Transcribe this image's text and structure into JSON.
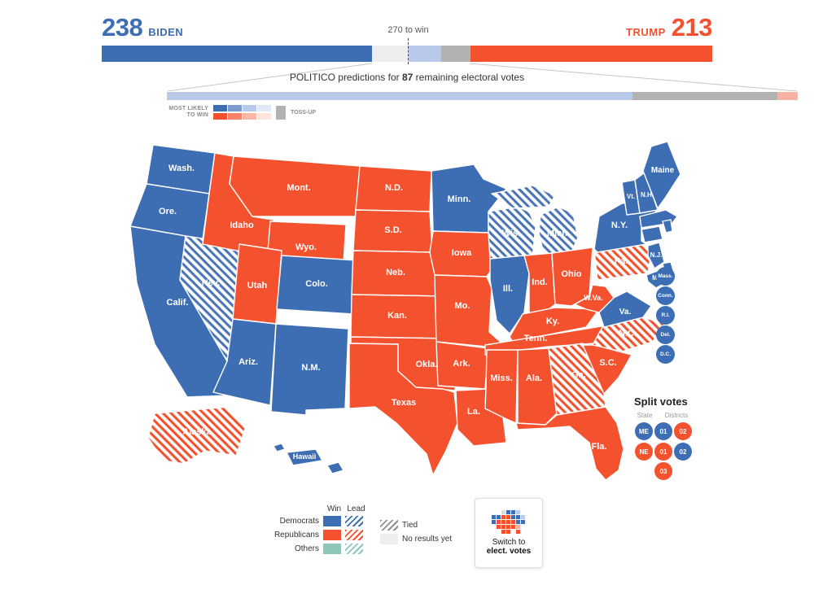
{
  "colors": {
    "democrat": "#3d6eb4",
    "republican": "#f4512e",
    "predicted_democrat": "#b9c9ea",
    "predicted_republican": "#f9b2a1",
    "tossup": "#b2b2b2",
    "no_results": "#eeeeee",
    "others": "#8ec6ba",
    "scale_dem": [
      "#3d6eb4",
      "#7e9bd0",
      "#b9c9ea",
      "#e2e9f6"
    ],
    "scale_rep": [
      "#f4512e",
      "#f8836a",
      "#fbb7a6",
      "#fde4dc"
    ]
  },
  "header": {
    "dem_votes": "238",
    "dem_name": "BIDEN",
    "rep_name": "TRUMP",
    "rep_votes": "213",
    "to_win": "270 to win"
  },
  "prediction": {
    "prefix": "POLITICO predictions for ",
    "count": "87",
    "suffix": " remaining electoral votes",
    "most_likely_line1": "MOST LIKELY",
    "most_likely_line2": "TO WIN",
    "tossup": "TOSS-UP"
  },
  "map": {
    "states": [
      {
        "id": "WA",
        "label": "Wash.",
        "party": "dem",
        "status": "win"
      },
      {
        "id": "OR",
        "label": "Ore.",
        "party": "dem",
        "status": "win"
      },
      {
        "id": "CA",
        "label": "Calif.",
        "party": "dem",
        "status": "win"
      },
      {
        "id": "NV",
        "label": "Nev.",
        "party": "dem",
        "status": "lead"
      },
      {
        "id": "ID",
        "label": "Idaho",
        "party": "rep",
        "status": "win"
      },
      {
        "id": "MT",
        "label": "Mont.",
        "party": "rep",
        "status": "win"
      },
      {
        "id": "WY",
        "label": "Wyo.",
        "party": "rep",
        "status": "win"
      },
      {
        "id": "UT",
        "label": "Utah",
        "party": "rep",
        "status": "win"
      },
      {
        "id": "CO",
        "label": "Colo.",
        "party": "dem",
        "status": "win"
      },
      {
        "id": "AZ",
        "label": "Ariz.",
        "party": "dem",
        "status": "win"
      },
      {
        "id": "NM",
        "label": "N.M.",
        "party": "dem",
        "status": "win"
      },
      {
        "id": "ND",
        "label": "N.D.",
        "party": "rep",
        "status": "win"
      },
      {
        "id": "SD",
        "label": "S.D.",
        "party": "rep",
        "status": "win"
      },
      {
        "id": "NE",
        "label": "Neb.",
        "party": "rep",
        "status": "win"
      },
      {
        "id": "KS",
        "label": "Kan.",
        "party": "rep",
        "status": "win"
      },
      {
        "id": "OK",
        "label": "Okla.",
        "party": "rep",
        "status": "win"
      },
      {
        "id": "TX",
        "label": "Texas",
        "party": "rep",
        "status": "win"
      },
      {
        "id": "MN",
        "label": "Minn.",
        "party": "dem",
        "status": "win"
      },
      {
        "id": "IA",
        "label": "Iowa",
        "party": "rep",
        "status": "win"
      },
      {
        "id": "MO",
        "label": "Mo.",
        "party": "rep",
        "status": "win"
      },
      {
        "id": "AR",
        "label": "Ark.",
        "party": "rep",
        "status": "win"
      },
      {
        "id": "LA",
        "label": "La.",
        "party": "rep",
        "status": "win"
      },
      {
        "id": "WI",
        "label": "Wis.",
        "party": "dem",
        "status": "lead"
      },
      {
        "id": "MI",
        "label": "Mich.",
        "party": "dem",
        "status": "lead"
      },
      {
        "id": "IL",
        "label": "Ill.",
        "party": "dem",
        "status": "win"
      },
      {
        "id": "IN",
        "label": "Ind.",
        "party": "rep",
        "status": "win"
      },
      {
        "id": "OH",
        "label": "Ohio",
        "party": "rep",
        "status": "win"
      },
      {
        "id": "KY",
        "label": "Ky.",
        "party": "rep",
        "status": "win"
      },
      {
        "id": "TN",
        "label": "Tenn.",
        "party": "rep",
        "status": "win"
      },
      {
        "id": "MS",
        "label": "Miss.",
        "party": "rep",
        "status": "win"
      },
      {
        "id": "AL",
        "label": "Ala.",
        "party": "rep",
        "status": "win"
      },
      {
        "id": "GA",
        "label": "Ga.",
        "party": "rep",
        "status": "lead"
      },
      {
        "id": "FL",
        "label": "Fla.",
        "party": "rep",
        "status": "win"
      },
      {
        "id": "SC",
        "label": "S.C.",
        "party": "rep",
        "status": "win"
      },
      {
        "id": "NC",
        "label": "N.C.",
        "party": "rep",
        "status": "lead"
      },
      {
        "id": "VA",
        "label": "Va.",
        "party": "dem",
        "status": "win"
      },
      {
        "id": "WV",
        "label": "W.Va.",
        "party": "rep",
        "status": "win"
      },
      {
        "id": "PA",
        "label": "Pa.",
        "party": "rep",
        "status": "lead"
      },
      {
        "id": "NY",
        "label": "N.Y.",
        "party": "dem",
        "status": "win"
      },
      {
        "id": "NJ",
        "label": "N.J.",
        "party": "dem",
        "status": "win"
      },
      {
        "id": "VT",
        "label": "Vt.",
        "party": "dem",
        "status": "win"
      },
      {
        "id": "NH",
        "label": "N.H.",
        "party": "dem",
        "status": "win"
      },
      {
        "id": "ME",
        "label": "Maine",
        "party": "dem",
        "status": "win"
      },
      {
        "id": "MA",
        "label": "",
        "party": "dem",
        "status": "win"
      },
      {
        "id": "CT",
        "label": "",
        "party": "dem",
        "status": "win"
      },
      {
        "id": "RI",
        "label": "",
        "party": "dem",
        "status": "win"
      },
      {
        "id": "DE",
        "label": "",
        "party": "dem",
        "status": "win"
      },
      {
        "id": "MD",
        "label": "Md.",
        "party": "dem",
        "status": "win"
      },
      {
        "id": "AK",
        "label": "Alaska",
        "party": "rep",
        "status": "lead"
      },
      {
        "id": "HI",
        "label": "Hawaii",
        "party": "dem",
        "status": "win"
      }
    ]
  },
  "small_states": [
    {
      "label": "Mass.",
      "party": "dem"
    },
    {
      "label": "Conn.",
      "party": "dem"
    },
    {
      "label": "R.I.",
      "party": "dem"
    },
    {
      "label": "Del.",
      "party": "dem"
    },
    {
      "label": "D.C.",
      "party": "dem"
    }
  ],
  "split_votes": {
    "title": "Split votes",
    "col_state": "State",
    "col_districts": "Districts",
    "rows": [
      {
        "state": "ME",
        "party": "dem",
        "districts": [
          {
            "label": "01",
            "party": "dem"
          },
          {
            "label": "02",
            "party": "rep"
          }
        ]
      },
      {
        "state": "NE",
        "party": "rep",
        "districts": [
          {
            "label": "01",
            "party": "rep"
          },
          {
            "label": "02",
            "party": "dem"
          },
          {
            "label": "03",
            "party": "rep"
          }
        ]
      }
    ]
  },
  "legend": {
    "win": "Win",
    "lead": "Lead",
    "parties": [
      {
        "label": "Democrats",
        "key": "dem"
      },
      {
        "label": "Republicans",
        "key": "rep"
      },
      {
        "label": "Others",
        "key": "oth"
      }
    ],
    "tied": "Tied",
    "no_results": "No results yet"
  },
  "switch_button": {
    "line1": "Switch to",
    "line2": "elect. votes"
  }
}
